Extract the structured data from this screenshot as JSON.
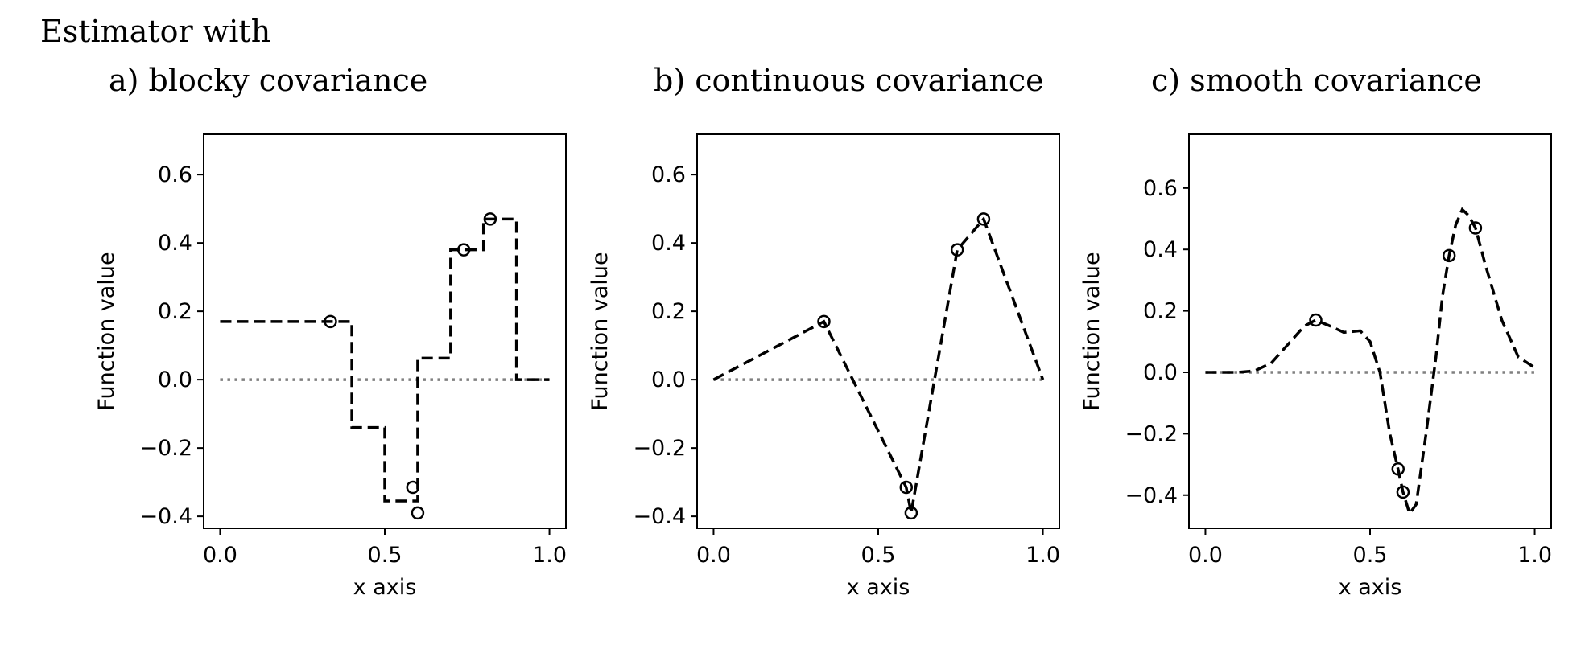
{
  "suptitle": "Estimator with",
  "chart_data": [
    {
      "type": "line",
      "title": "a)  blocky covariance",
      "xlabel": "x axis",
      "ylabel": "Function value",
      "xlim": [
        -0.05,
        1.05
      ],
      "ylim": [
        -0.435,
        0.718
      ],
      "xticks": [
        "0.0",
        "0.5",
        "1.0"
      ],
      "xtick_values": [
        0,
        0.5,
        1
      ],
      "yticks": [
        "0.6",
        "0.4",
        "0.2",
        "0.0",
        "−0.2",
        "−0.4"
      ],
      "ytick_values": [
        0.6,
        0.4,
        0.2,
        0,
        -0.2,
        -0.4
      ],
      "step": true,
      "curve": {
        "x": [
          0,
          0.4,
          0.4,
          0.5,
          0.5,
          0.6,
          0.6,
          0.7,
          0.7,
          0.8,
          0.8,
          0.9,
          0.9,
          1.0
        ],
        "y": [
          0.17,
          0.17,
          -0.14,
          -0.14,
          -0.355,
          -0.355,
          0.063,
          0.063,
          0.38,
          0.38,
          0.47,
          0.47,
          0,
          0
        ]
      },
      "points": {
        "x": [
          0.335,
          0.585,
          0.6,
          0.74,
          0.82
        ],
        "y": [
          0.17,
          -0.315,
          -0.39,
          0.38,
          0.47
        ]
      },
      "baseline": 0
    },
    {
      "type": "line",
      "title": "b)  continuous covariance",
      "xlabel": "x axis",
      "ylabel": "Function value",
      "xlim": [
        -0.05,
        1.05
      ],
      "ylim": [
        -0.435,
        0.718
      ],
      "xticks": [
        "0.0",
        "0.5",
        "1.0"
      ],
      "xtick_values": [
        0,
        0.5,
        1
      ],
      "yticks": [
        "0.6",
        "0.4",
        "0.2",
        "0.0",
        "−0.2",
        "−0.4"
      ],
      "ytick_values": [
        0.6,
        0.4,
        0.2,
        0,
        -0.2,
        -0.4
      ],
      "curve": {
        "x": [
          0,
          0.335,
          0.585,
          0.6,
          0.74,
          0.82,
          1.0
        ],
        "y": [
          0,
          0.17,
          -0.315,
          -0.39,
          0.38,
          0.47,
          0
        ]
      },
      "points": {
        "x": [
          0.335,
          0.585,
          0.6,
          0.74,
          0.82
        ],
        "y": [
          0.17,
          -0.315,
          -0.39,
          0.38,
          0.47
        ]
      },
      "baseline": 0
    },
    {
      "type": "line",
      "title": "c)  smooth covariance",
      "xlabel": "x axis",
      "ylabel": "Function value",
      "xlim": [
        -0.05,
        1.05
      ],
      "ylim": [
        -0.508,
        0.775
      ],
      "xticks": [
        "0.0",
        "0.5",
        "1.0"
      ],
      "xtick_values": [
        0,
        0.5,
        1
      ],
      "yticks": [
        "0.6",
        "0.4",
        "0.2",
        "0.0",
        "−0.2",
        "−0.4"
      ],
      "ytick_values": [
        0.6,
        0.4,
        0.2,
        0,
        -0.2,
        -0.4
      ],
      "curve": {
        "x": [
          0,
          0.1,
          0.15,
          0.2,
          0.25,
          0.3,
          0.335,
          0.38,
          0.42,
          0.47,
          0.5,
          0.53,
          0.56,
          0.585,
          0.6,
          0.62,
          0.64,
          0.67,
          0.7,
          0.72,
          0.74,
          0.76,
          0.78,
          0.8,
          0.82,
          0.85,
          0.9,
          0.95,
          1.0
        ],
        "y": [
          0,
          0,
          0.005,
          0.03,
          0.09,
          0.15,
          0.17,
          0.15,
          0.13,
          0.135,
          0.1,
          0.0,
          -0.2,
          -0.315,
          -0.39,
          -0.46,
          -0.43,
          -0.2,
          0.05,
          0.25,
          0.38,
          0.48,
          0.53,
          0.51,
          0.47,
          0.35,
          0.17,
          0.05,
          0.015
        ]
      },
      "points": {
        "x": [
          0.335,
          0.585,
          0.6,
          0.74,
          0.82
        ],
        "y": [
          0.17,
          -0.315,
          -0.39,
          0.38,
          0.47
        ]
      },
      "baseline": 0
    }
  ],
  "colors": {
    "curve": "#000000",
    "baseline": "#808080",
    "markers": "#000000"
  }
}
